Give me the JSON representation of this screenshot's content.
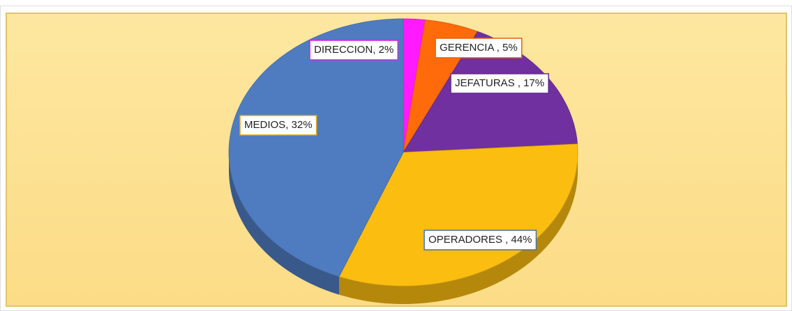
{
  "chart_data": {
    "type": "pie",
    "values": [
      2,
      5,
      17,
      32,
      44
    ],
    "value_labels": [
      "DIRECCION, 2%",
      "GERENCIA , 5%",
      "JEFATURAS , 17%",
      "MEDIOS, 32%",
      "OPERADORES , 44%"
    ],
    "colors": [
      "#ff1aff",
      "#ff6a0a",
      "#7030a0",
      "#fbbd10",
      "#4f7cc0"
    ]
  }
}
